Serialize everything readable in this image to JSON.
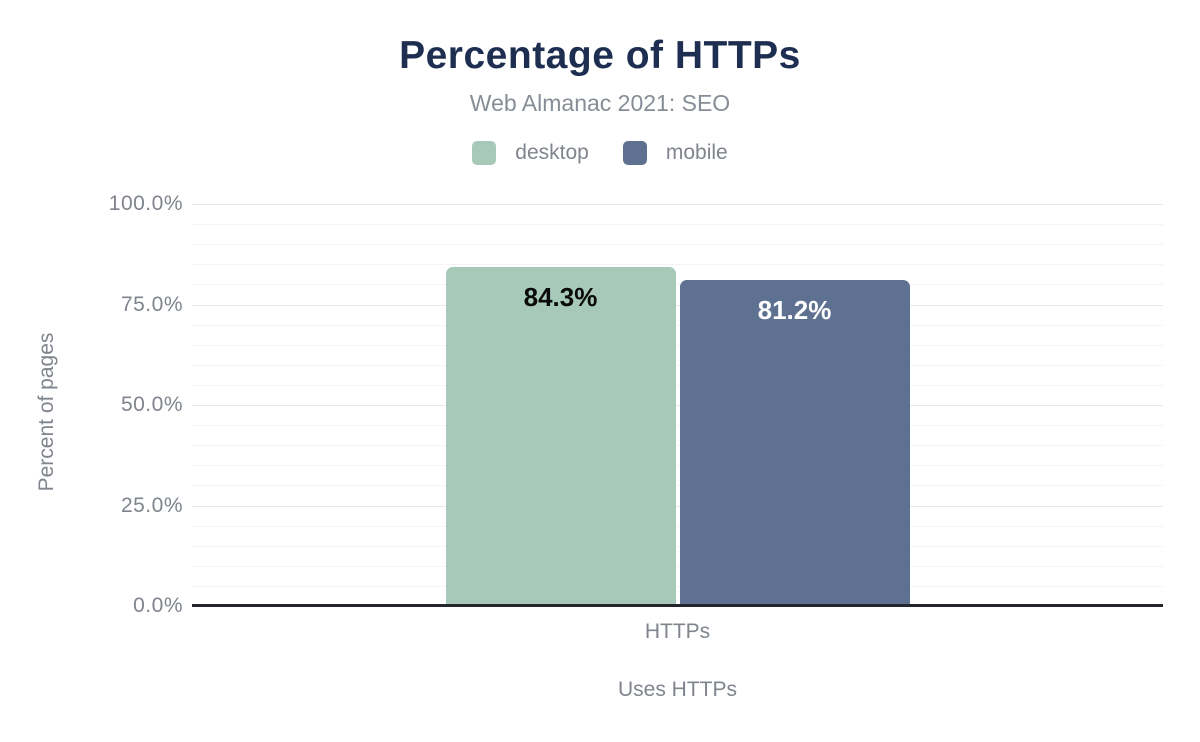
{
  "chart_data": {
    "type": "bar",
    "title": "Percentage of HTTPs",
    "subtitle": "Web Almanac 2021: SEO",
    "categories": [
      "HTTPs"
    ],
    "series": [
      {
        "name": "desktop",
        "values": [
          84.3
        ],
        "data_label": "84.3%",
        "color": "#a6c9b9",
        "label_color": "#0a0a0a"
      },
      {
        "name": "mobile",
        "values": [
          81.2
        ],
        "data_label": "81.2%",
        "color": "#5f7190",
        "label_color": "#ffffff"
      }
    ],
    "xlabel": "Uses HTTPs",
    "ylabel": "Percent of pages",
    "ylim": [
      0,
      100
    ],
    "yticks": [
      {
        "label": "100.0%",
        "value": 100
      },
      {
        "label": "75.0%",
        "value": 75
      },
      {
        "label": "50.0%",
        "value": 50
      },
      {
        "label": "25.0%",
        "value": 25
      },
      {
        "label": "0.0%",
        "value": 0
      }
    ],
    "minor_grid_step": 5,
    "major_grid_step": 25,
    "grid": true,
    "legend_position": "top"
  },
  "colors": {
    "title": "#1e2e51",
    "subtitle": "#878d96",
    "axis_text": "#7f848d",
    "axis_line": "#23272d",
    "grid_minor": "#f4f4f6",
    "grid_major": "#e8e8ea",
    "background": "#ffffff"
  }
}
